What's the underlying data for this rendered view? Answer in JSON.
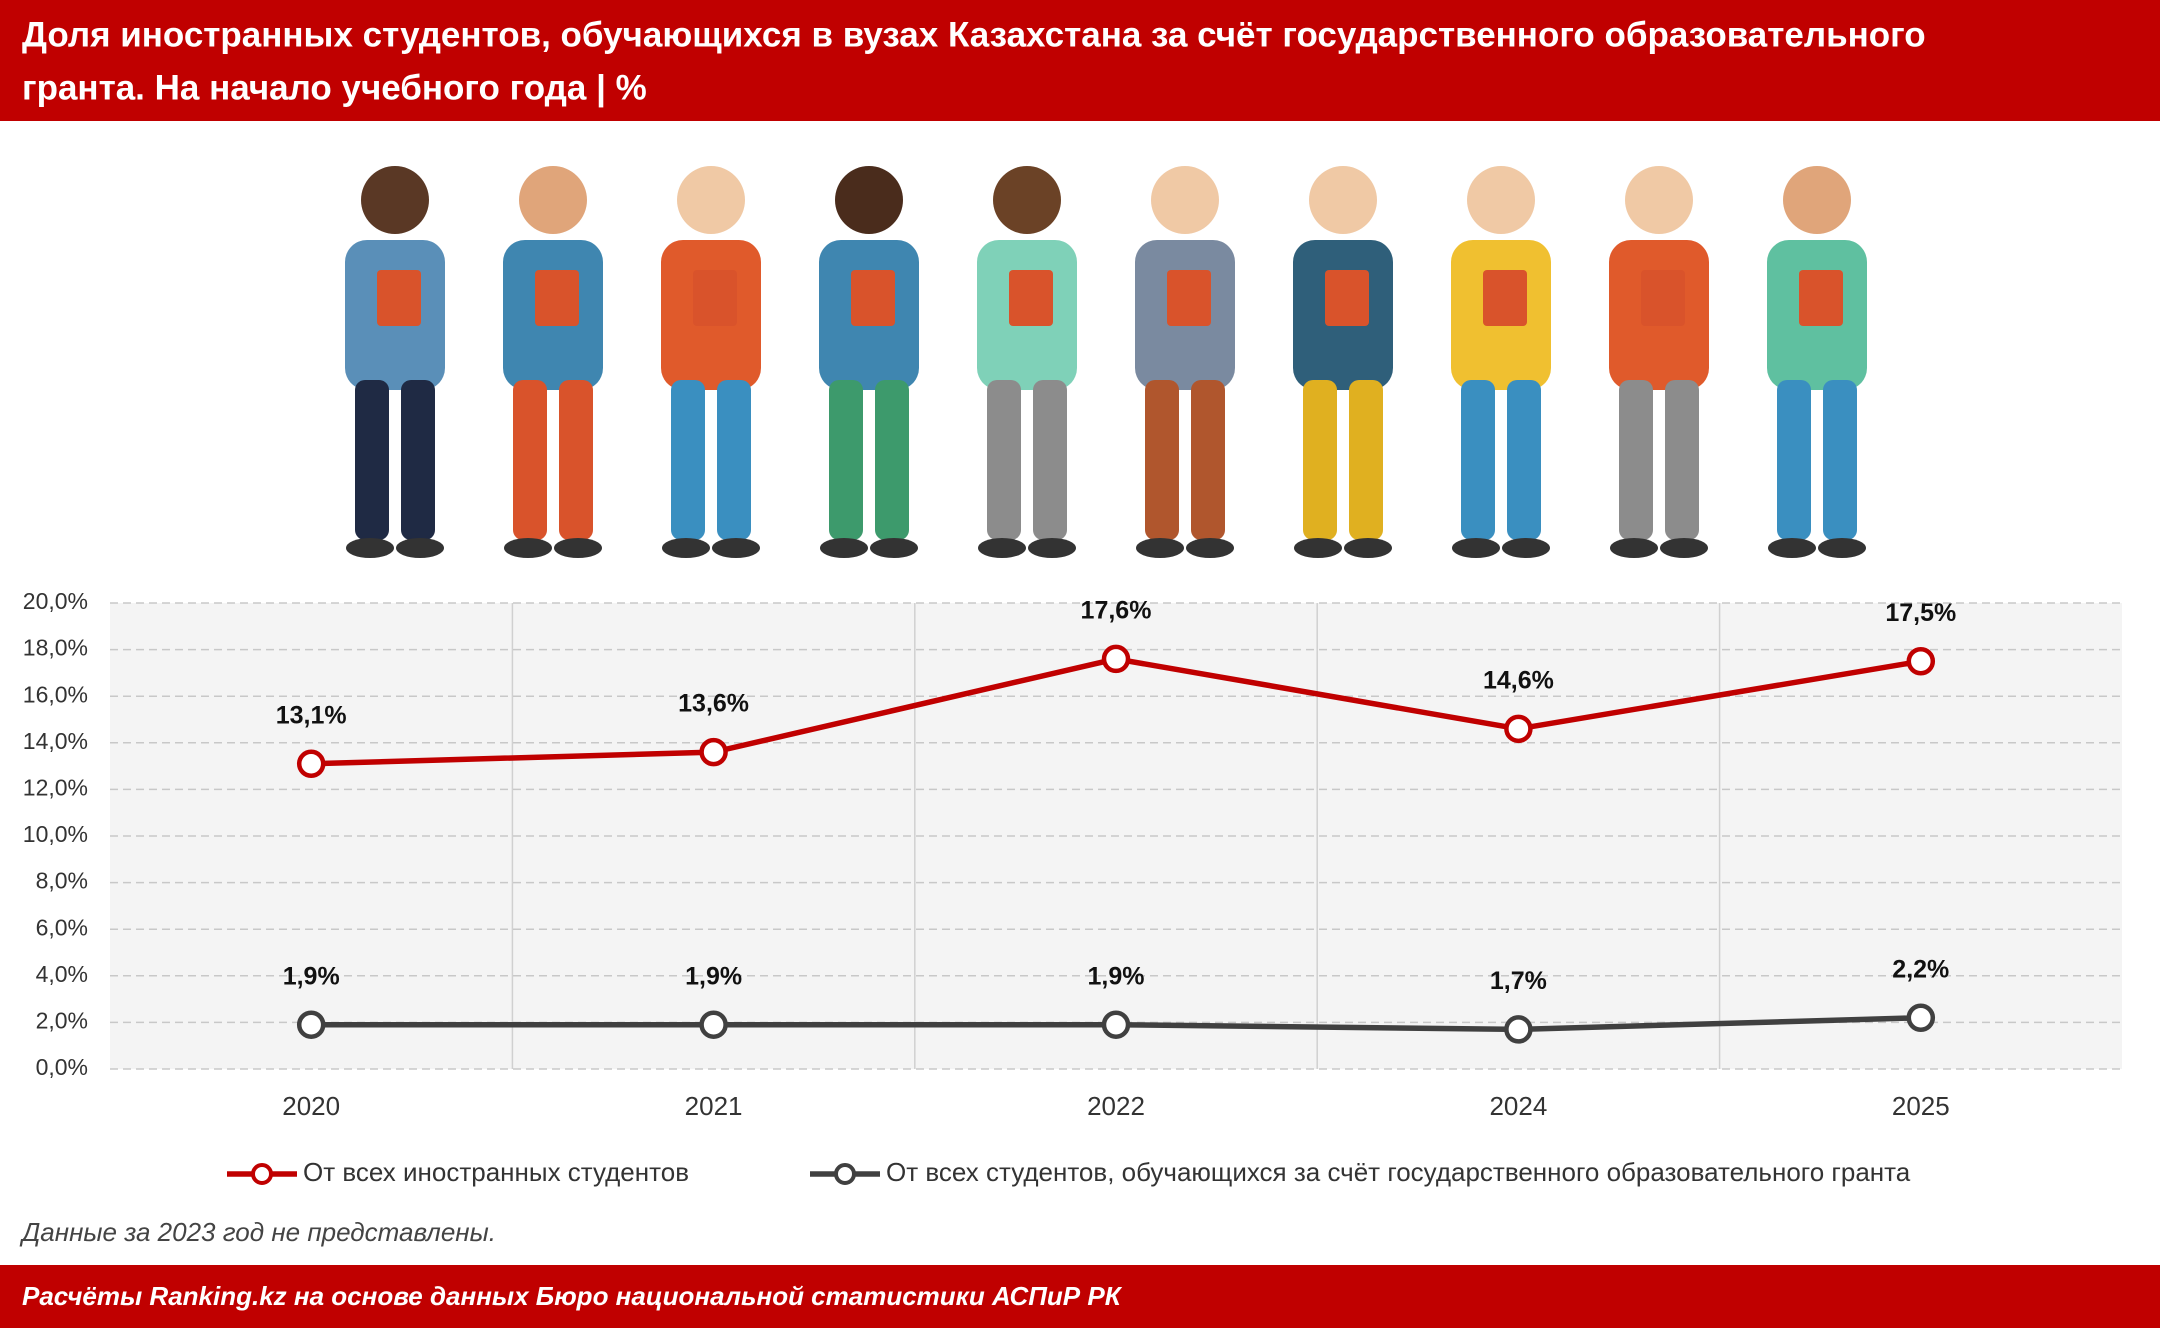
{
  "chart_data": {
    "type": "line",
    "title": "Доля иностранных студентов, обучающихся в вузах Казахстана за счёт государственного образовательного",
    "title_line2": "гранта. На начало учебного года | %",
    "categories": [
      "2020",
      "2021",
      "2022",
      "2024",
      "2025"
    ],
    "series": [
      {
        "name": "От всех иностранных студентов",
        "color": "#c00000",
        "values": [
          13.1,
          13.6,
          17.6,
          14.6,
          17.5
        ],
        "value_labels": [
          "13,1%",
          "13,6%",
          "17,6%",
          "14,6%",
          "17,5%"
        ]
      },
      {
        "name": "От всех студентов, обучающихся за счёт государственного образовательного гранта",
        "color": "#404040",
        "values": [
          1.9,
          1.9,
          1.9,
          1.7,
          2.2
        ],
        "value_labels": [
          "1,9%",
          "1,9%",
          "1,9%",
          "1,7%",
          "2,2%"
        ]
      }
    ],
    "ylim": [
      0,
      20
    ],
    "yticks": [
      {
        "value": 0,
        "label": "0,0%"
      },
      {
        "value": 2,
        "label": "2,0%"
      },
      {
        "value": 4,
        "label": "4,0%"
      },
      {
        "value": 6,
        "label": "6,0%"
      },
      {
        "value": 8,
        "label": "8,0%"
      },
      {
        "value": 10,
        "label": "10,0%"
      },
      {
        "value": 12,
        "label": "12,0%"
      },
      {
        "value": 14,
        "label": "14,0%"
      },
      {
        "value": 16,
        "label": "16,0%"
      },
      {
        "value": 18,
        "label": "18,0%"
      },
      {
        "value": 20,
        "label": "20,0%"
      }
    ],
    "grid": true,
    "legend": "bottom",
    "note": "Данные за 2023 год не представлены.",
    "source": "Расчёты Ranking.kz на основе данных Бюро национальной статистики АСПиР РК"
  }
}
